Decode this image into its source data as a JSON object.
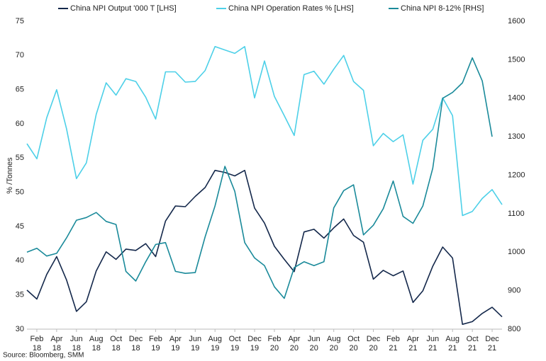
{
  "chart_data": {
    "type": "line",
    "y_axis_label": "% /Tonnes",
    "source": "Source: Bloomberg, SMM",
    "categories": [
      null,
      "Feb 18",
      null,
      "Apr 18",
      null,
      "Jun 18",
      null,
      "Aug 18",
      null,
      "Oct 18",
      null,
      "Dec 18",
      null,
      "Feb 19",
      null,
      "Apr 19",
      null,
      "Jun 19",
      null,
      "Aug 19",
      null,
      "Oct 19",
      null,
      "Dec 19",
      null,
      "Feb 20",
      null,
      "Apr 20",
      null,
      "Jun 20",
      null,
      "Aug 20",
      null,
      "Oct 20",
      null,
      "Dec 20",
      null,
      "Feb 21",
      null,
      "Apr 21",
      null,
      "Jun 21",
      null,
      "Aug 21",
      null,
      "Oct 21",
      null,
      "Dec 21",
      null
    ],
    "series": [
      {
        "name": "China NPI Output '000 T [LHS]",
        "color": "#14284b",
        "values": [
          35.7,
          34.4,
          38,
          40.6,
          37.2,
          32.6,
          34,
          38.5,
          41.3,
          40.2,
          41.7,
          41.5,
          42.5,
          40.6,
          45.8,
          48,
          47.9,
          49.4,
          50.7,
          53.2,
          52.9,
          52.4,
          53.2,
          47.7,
          45.5,
          42.1,
          40.2,
          38.4,
          44.2,
          44.6,
          43.3,
          44.8,
          46.1,
          43.7,
          42.7,
          37.3,
          38.6,
          37.8,
          38.5,
          33.9,
          35.6,
          39.2,
          42,
          40.4,
          30.7,
          31.1,
          32.3,
          33.2,
          31.8
        ]
      },
      {
        "name": "China NPI Operation Rates % [LHS]",
        "color": "#4dd0e8",
        "values": [
          57.1,
          54.9,
          60.9,
          65,
          59.3,
          52,
          54.3,
          61.4,
          66,
          64.2,
          66.6,
          66.2,
          63.9,
          60.7,
          67.6,
          67.6,
          66.1,
          66.2,
          67.8,
          71.3,
          70.8,
          70.3,
          71.3,
          63.8,
          69.2,
          64,
          61.2,
          58.3,
          67.2,
          67.7,
          65.8,
          68,
          70,
          66.2,
          64.9,
          56.8,
          58.6,
          57.4,
          58.4,
          51.2,
          57.6,
          59.2,
          63.8,
          61.2,
          46.6,
          47.2,
          49.1,
          50.4,
          48.2
        ]
      },
      {
        "name": "China NPI 8-12% [RHS]",
        "color": "#1a8a9a",
        "axis": "y2",
        "values": [
          1000,
          1010,
          990,
          997,
          1037,
          1083,
          1090,
          1103,
          1080,
          1072,
          950,
          925,
          975,
          1020,
          1025,
          950,
          945,
          947,
          1040,
          1120,
          1223,
          1158,
          1025,
          985,
          965,
          910,
          880,
          960,
          975,
          965,
          975,
          1115,
          1160,
          1175,
          1045,
          1070,
          1113,
          1185,
          1093,
          1075,
          1120,
          1218,
          1400,
          1415,
          1440,
          1505,
          1445,
          1300,
          null
        ]
      }
    ],
    "ylim": [
      30,
      75
    ],
    "yticks": [
      30,
      35,
      40,
      45,
      50,
      55,
      60,
      65,
      70,
      75
    ],
    "y2lim": [
      800,
      1600
    ],
    "y2ticks": [
      800,
      900,
      1000,
      1100,
      1200,
      1300,
      1400,
      1500,
      1600
    ],
    "grid": false,
    "legend": "top"
  }
}
